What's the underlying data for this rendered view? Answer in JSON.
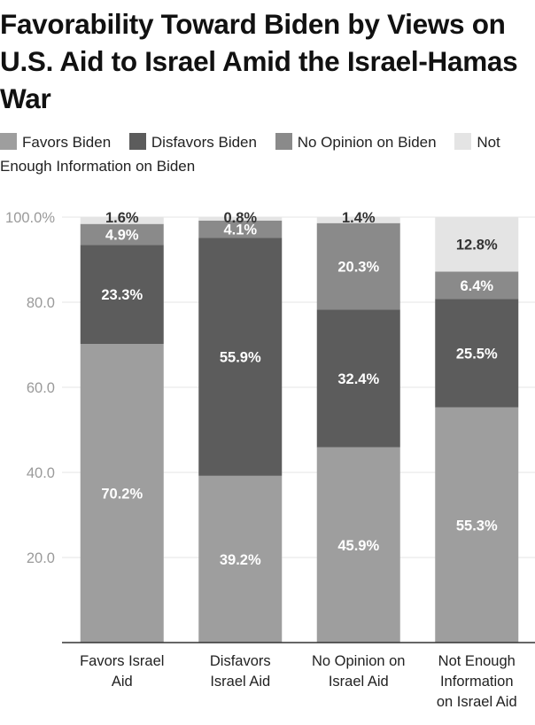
{
  "chart_data": {
    "type": "bar",
    "stacked": true,
    "title": "Favorability Toward Biden by Views on U.S. Aid to Israel Amid the Israel-Hamas War",
    "xlabel": "",
    "ylabel": "",
    "ylim": [
      0,
      100
    ],
    "yticks": [
      "20.0",
      "40.0",
      "60.0",
      "80.0",
      "100.0%"
    ],
    "ytick_values": [
      20,
      40,
      60,
      80,
      100
    ],
    "grid": true,
    "legend_position": "top",
    "categories": [
      [
        "Favors Israel",
        "Aid"
      ],
      [
        "Disfavors",
        "Israel Aid"
      ],
      [
        "No Opinion on",
        "Israel Aid"
      ],
      [
        "Not Enough",
        "Information",
        "on Israel Aid"
      ]
    ],
    "series": [
      {
        "name": "Favors Biden",
        "color": "#9e9e9e",
        "values": [
          70.2,
          39.2,
          45.9,
          55.3
        ],
        "labels": [
          "70.2%",
          "39.2%",
          "45.9%",
          "55.3%"
        ]
      },
      {
        "name": "Disfavors Biden",
        "color": "#5c5c5c",
        "values": [
          23.3,
          55.9,
          32.4,
          25.5
        ],
        "labels": [
          "23.3%",
          "55.9%",
          "32.4%",
          "25.5%"
        ]
      },
      {
        "name": "No Opinion on Biden",
        "color": "#8a8a8a",
        "values": [
          4.9,
          4.1,
          20.3,
          6.4
        ],
        "labels": [
          "4.9%",
          "4.1%",
          "20.3%",
          "6.4%"
        ]
      },
      {
        "name": "Not Enough Information on Biden",
        "color": "#e4e4e4",
        "values": [
          1.6,
          0.8,
          1.4,
          12.8
        ],
        "labels": [
          "1.6%",
          "0.8%",
          "1.4%",
          "12.8%"
        ]
      }
    ]
  }
}
